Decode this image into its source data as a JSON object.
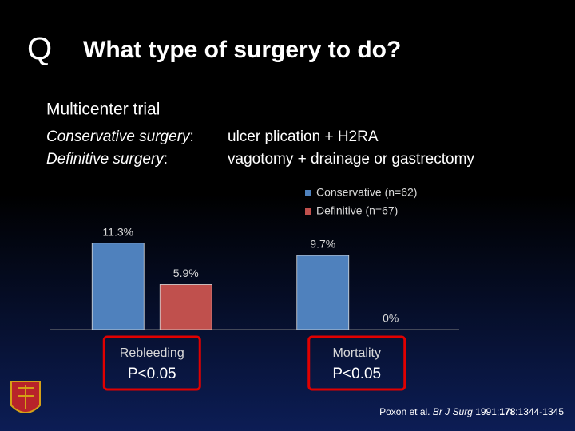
{
  "chart_data": {
    "type": "bar",
    "title_marker": "Q",
    "title": "What type of surgery to do?",
    "subtitle": "Multicenter trial",
    "definitions": [
      {
        "term": "Conservative surgery",
        "separator": ":",
        "text": "ulcer plication + H2RA"
      },
      {
        "term": "Definitive surgery",
        "separator": ":",
        "text": "vagotomy + drainage  or  gastrectomy"
      }
    ],
    "categories": [
      "Rebleeding",
      "Mortality"
    ],
    "series": [
      {
        "name": "Conservative (n=62)",
        "color": "#4f81bd",
        "values": [
          11.3,
          9.7
        ],
        "value_labels": [
          "11.3%",
          "9.7%"
        ]
      },
      {
        "name": "Definitive (n=67)",
        "color": "#c0504d",
        "values": [
          5.9,
          0
        ],
        "value_labels": [
          "5.9%",
          "0%"
        ]
      }
    ],
    "ylim": [
      0,
      12
    ],
    "annotations": [
      "P<0.05",
      "P<0.05"
    ],
    "annotation_color": "#e00000",
    "citation": [
      "Poxon et al. ",
      "Br J Surg",
      " 1991;",
      "178",
      ":1344-1345"
    ]
  }
}
